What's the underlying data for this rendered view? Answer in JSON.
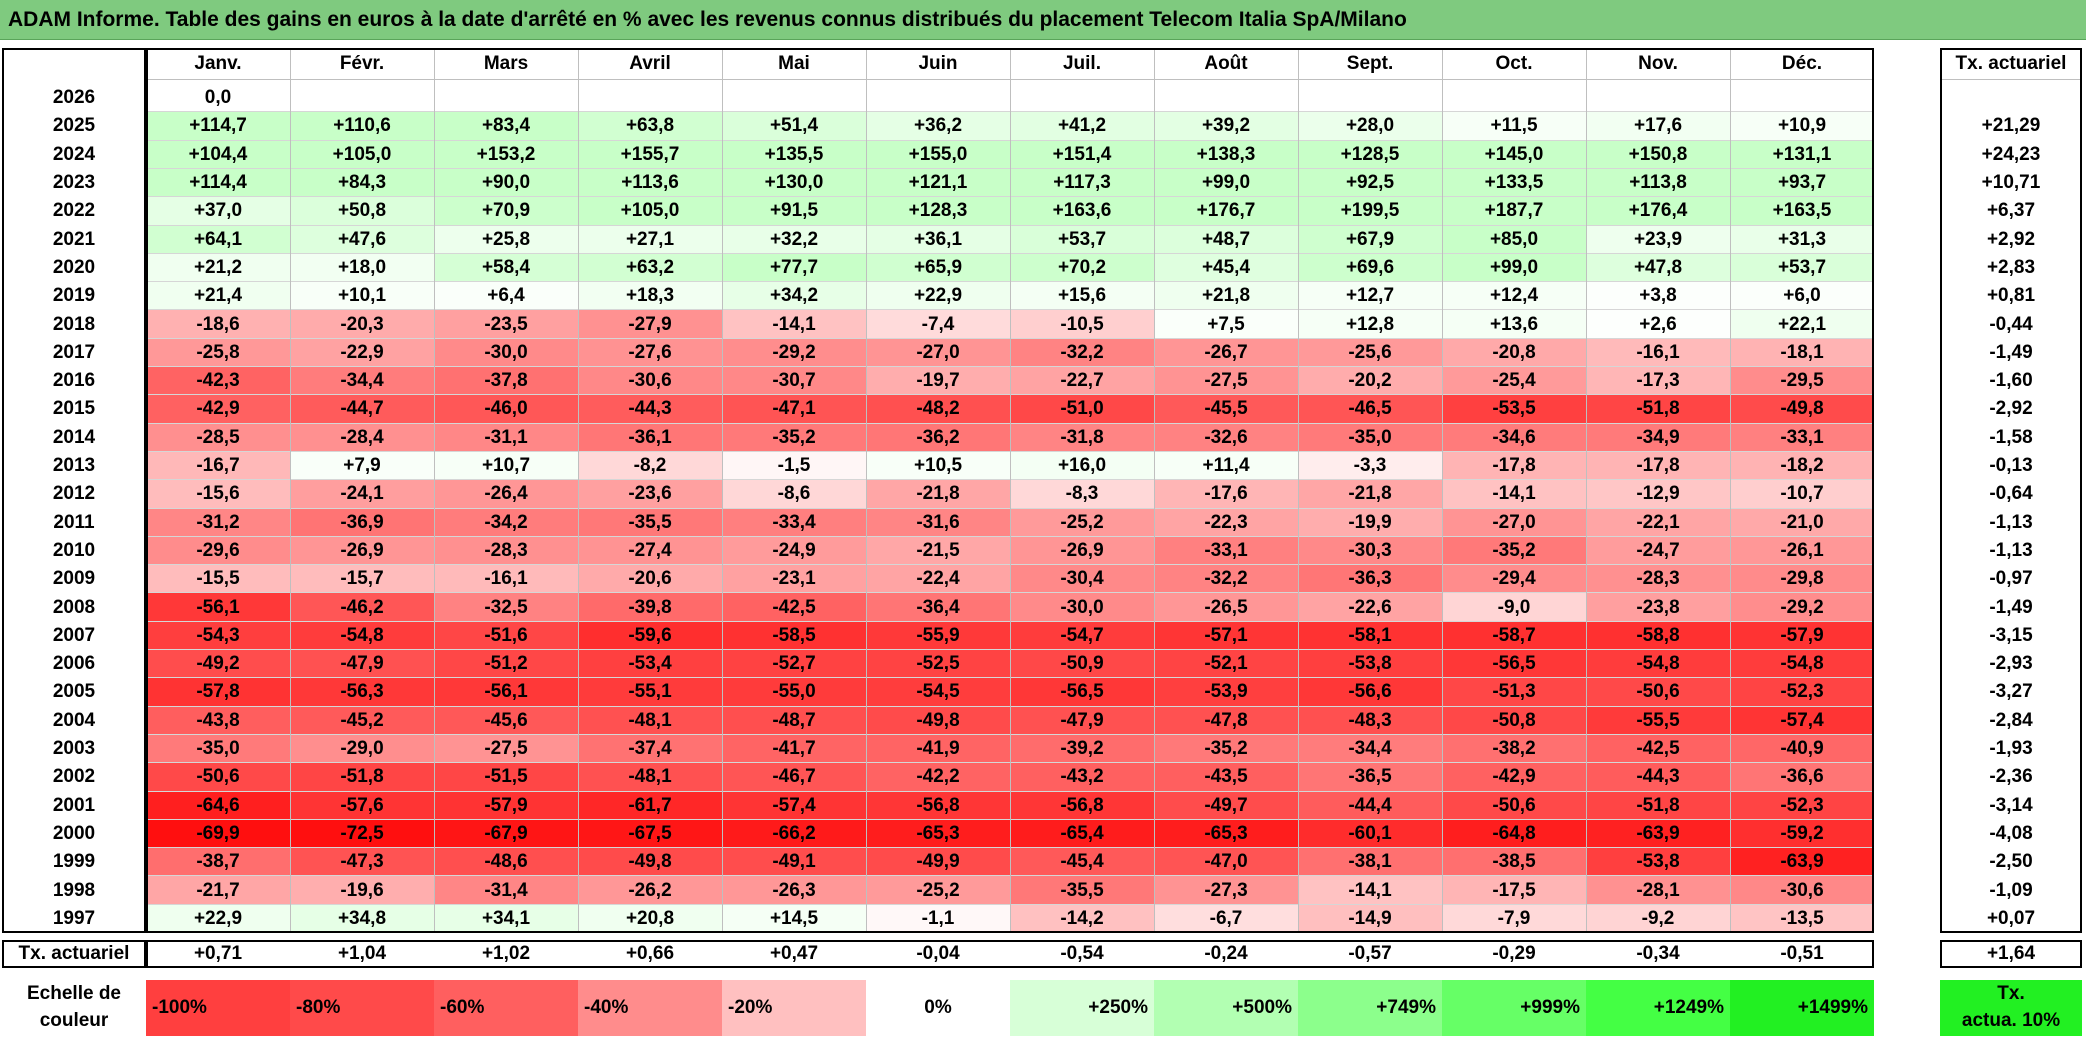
{
  "title": "ADAM Informe. Table des gains en euros à la date d'arrêté en % avec les revenus connus distribués du placement Telecom Italia SpA/Milano",
  "months": [
    "Janv.",
    "Févr.",
    "Mars",
    "Avril",
    "Mai",
    "Juin",
    "Juil.",
    "Août",
    "Sept.",
    "Oct.",
    "Nov.",
    "Déc."
  ],
  "annual_header": "Tx. actuariel",
  "rows": [
    {
      "year": "2026",
      "values": [
        "0,0",
        "",
        "",
        "",
        "",
        "",
        "",
        "",
        "",
        "",
        "",
        ""
      ],
      "rate": ""
    },
    {
      "year": "2025",
      "values": [
        "+114,7",
        "+110,6",
        "+83,4",
        "+63,8",
        "+51,4",
        "+36,2",
        "+41,2",
        "+39,2",
        "+28,0",
        "+11,5",
        "+17,6",
        "+10,9"
      ],
      "rate": "+21,29"
    },
    {
      "year": "2024",
      "values": [
        "+104,4",
        "+105,0",
        "+153,2",
        "+155,7",
        "+135,5",
        "+155,0",
        "+151,4",
        "+138,3",
        "+128,5",
        "+145,0",
        "+150,8",
        "+131,1"
      ],
      "rate": "+24,23"
    },
    {
      "year": "2023",
      "values": [
        "+114,4",
        "+84,3",
        "+90,0",
        "+113,6",
        "+130,0",
        "+121,1",
        "+117,3",
        "+99,0",
        "+92,5",
        "+133,5",
        "+113,8",
        "+93,7"
      ],
      "rate": "+10,71"
    },
    {
      "year": "2022",
      "values": [
        "+37,0",
        "+50,8",
        "+70,9",
        "+105,0",
        "+91,5",
        "+128,3",
        "+163,6",
        "+176,7",
        "+199,5",
        "+187,7",
        "+176,4",
        "+163,5"
      ],
      "rate": "+6,37"
    },
    {
      "year": "2021",
      "values": [
        "+64,1",
        "+47,6",
        "+25,8",
        "+27,1",
        "+32,2",
        "+36,1",
        "+53,7",
        "+48,7",
        "+67,9",
        "+85,0",
        "+23,9",
        "+31,3"
      ],
      "rate": "+2,92"
    },
    {
      "year": "2020",
      "values": [
        "+21,2",
        "+18,0",
        "+58,4",
        "+63,2",
        "+77,7",
        "+65,9",
        "+70,2",
        "+45,4",
        "+69,6",
        "+99,0",
        "+47,8",
        "+53,7"
      ],
      "rate": "+2,83"
    },
    {
      "year": "2019",
      "values": [
        "+21,4",
        "+10,1",
        "+6,4",
        "+18,3",
        "+34,2",
        "+22,9",
        "+15,6",
        "+21,8",
        "+12,7",
        "+12,4",
        "+3,8",
        "+6,0"
      ],
      "rate": "+0,81"
    },
    {
      "year": "2018",
      "values": [
        "-18,6",
        "-20,3",
        "-23,5",
        "-27,9",
        "-14,1",
        "-7,4",
        "-10,5",
        "+7,5",
        "+12,8",
        "+13,6",
        "+2,6",
        "+22,1"
      ],
      "rate": "-0,44"
    },
    {
      "year": "2017",
      "values": [
        "-25,8",
        "-22,9",
        "-30,0",
        "-27,6",
        "-29,2",
        "-27,0",
        "-32,2",
        "-26,7",
        "-25,6",
        "-20,8",
        "-16,1",
        "-18,1"
      ],
      "rate": "-1,49"
    },
    {
      "year": "2016",
      "values": [
        "-42,3",
        "-34,4",
        "-37,8",
        "-30,6",
        "-30,7",
        "-19,7",
        "-22,7",
        "-27,5",
        "-20,2",
        "-25,4",
        "-17,3",
        "-29,5"
      ],
      "rate": "-1,60"
    },
    {
      "year": "2015",
      "values": [
        "-42,9",
        "-44,7",
        "-46,0",
        "-44,3",
        "-47,1",
        "-48,2",
        "-51,0",
        "-45,5",
        "-46,5",
        "-53,5",
        "-51,8",
        "-49,8"
      ],
      "rate": "-2,92"
    },
    {
      "year": "2014",
      "values": [
        "-28,5",
        "-28,4",
        "-31,1",
        "-36,1",
        "-35,2",
        "-36,2",
        "-31,8",
        "-32,6",
        "-35,0",
        "-34,6",
        "-34,9",
        "-33,1"
      ],
      "rate": "-1,58"
    },
    {
      "year": "2013",
      "values": [
        "-16,7",
        "+7,9",
        "+10,7",
        "-8,2",
        "-1,5",
        "+10,5",
        "+16,0",
        "+11,4",
        "-3,3",
        "-17,8",
        "-17,8",
        "-18,2"
      ],
      "rate": "-0,13"
    },
    {
      "year": "2012",
      "values": [
        "-15,6",
        "-24,1",
        "-26,4",
        "-23,6",
        "-8,6",
        "-21,8",
        "-8,3",
        "-17,6",
        "-21,8",
        "-14,1",
        "-12,9",
        "-10,7"
      ],
      "rate": "-0,64"
    },
    {
      "year": "2011",
      "values": [
        "-31,2",
        "-36,9",
        "-34,2",
        "-35,5",
        "-33,4",
        "-31,6",
        "-25,2",
        "-22,3",
        "-19,9",
        "-27,0",
        "-22,1",
        "-21,0"
      ],
      "rate": "-1,13"
    },
    {
      "year": "2010",
      "values": [
        "-29,6",
        "-26,9",
        "-28,3",
        "-27,4",
        "-24,9",
        "-21,5",
        "-26,9",
        "-33,1",
        "-30,3",
        "-35,2",
        "-24,7",
        "-26,1"
      ],
      "rate": "-1,13"
    },
    {
      "year": "2009",
      "values": [
        "-15,5",
        "-15,7",
        "-16,1",
        "-20,6",
        "-23,1",
        "-22,4",
        "-30,4",
        "-32,2",
        "-36,3",
        "-29,4",
        "-28,3",
        "-29,8"
      ],
      "rate": "-0,97"
    },
    {
      "year": "2008",
      "values": [
        "-56,1",
        "-46,2",
        "-32,5",
        "-39,8",
        "-42,5",
        "-36,4",
        "-30,0",
        "-26,5",
        "-22,6",
        "-9,0",
        "-23,8",
        "-29,2"
      ],
      "rate": "-1,49"
    },
    {
      "year": "2007",
      "values": [
        "-54,3",
        "-54,8",
        "-51,6",
        "-59,6",
        "-58,5",
        "-55,9",
        "-54,7",
        "-57,1",
        "-58,1",
        "-58,7",
        "-58,8",
        "-57,9"
      ],
      "rate": "-3,15"
    },
    {
      "year": "2006",
      "values": [
        "-49,2",
        "-47,9",
        "-51,2",
        "-53,4",
        "-52,7",
        "-52,5",
        "-50,9",
        "-52,1",
        "-53,8",
        "-56,5",
        "-54,8",
        "-54,8"
      ],
      "rate": "-2,93"
    },
    {
      "year": "2005",
      "values": [
        "-57,8",
        "-56,3",
        "-56,1",
        "-55,1",
        "-55,0",
        "-54,5",
        "-56,5",
        "-53,9",
        "-56,6",
        "-51,3",
        "-50,6",
        "-52,3"
      ],
      "rate": "-3,27"
    },
    {
      "year": "2004",
      "values": [
        "-43,8",
        "-45,2",
        "-45,6",
        "-48,1",
        "-48,7",
        "-49,8",
        "-47,9",
        "-47,8",
        "-48,3",
        "-50,8",
        "-55,5",
        "-57,4"
      ],
      "rate": "-2,84"
    },
    {
      "year": "2003",
      "values": [
        "-35,0",
        "-29,0",
        "-27,5",
        "-37,4",
        "-41,7",
        "-41,9",
        "-39,2",
        "-35,2",
        "-34,4",
        "-38,2",
        "-42,5",
        "-40,9"
      ],
      "rate": "-1,93"
    },
    {
      "year": "2002",
      "values": [
        "-50,6",
        "-51,8",
        "-51,5",
        "-48,1",
        "-46,7",
        "-42,2",
        "-43,2",
        "-43,5",
        "-36,5",
        "-42,9",
        "-44,3",
        "-36,6"
      ],
      "rate": "-2,36"
    },
    {
      "year": "2001",
      "values": [
        "-64,6",
        "-57,6",
        "-57,9",
        "-61,7",
        "-57,4",
        "-56,8",
        "-56,8",
        "-49,7",
        "-44,4",
        "-50,6",
        "-51,8",
        "-52,3"
      ],
      "rate": "-3,14"
    },
    {
      "year": "2000",
      "values": [
        "-69,9",
        "-72,5",
        "-67,9",
        "-67,5",
        "-66,2",
        "-65,3",
        "-65,4",
        "-65,3",
        "-60,1",
        "-64,8",
        "-63,9",
        "-59,2"
      ],
      "rate": "-4,08"
    },
    {
      "year": "1999",
      "values": [
        "-38,7",
        "-47,3",
        "-48,6",
        "-49,8",
        "-49,1",
        "-49,9",
        "-45,4",
        "-47,0",
        "-38,1",
        "-38,5",
        "-53,8",
        "-63,9"
      ],
      "rate": "-2,50"
    },
    {
      "year": "1998",
      "values": [
        "-21,7",
        "-19,6",
        "-31,4",
        "-26,2",
        "-26,3",
        "-25,2",
        "-35,5",
        "-27,3",
        "-14,1",
        "-17,5",
        "-28,1",
        "-30,6"
      ],
      "rate": "-1,09"
    },
    {
      "year": "1997",
      "values": [
        "+22,9",
        "+34,8",
        "+34,1",
        "+20,8",
        "+14,5",
        "-1,1",
        "-14,2",
        "-6,7",
        "-14,9",
        "-7,9",
        "-9,2",
        "-13,5"
      ],
      "rate": "+0,07"
    }
  ],
  "summary": {
    "label": "Tx. actuariel",
    "values": [
      "+0,71",
      "+1,04",
      "+1,02",
      "+0,66",
      "+0,47",
      "-0,04",
      "-0,54",
      "-0,24",
      "-0,57",
      "-0,29",
      "-0,34",
      "-0,51"
    ],
    "rate": "+1,64"
  },
  "legend": {
    "label_line1": "Echelle de",
    "label_line2": "couleur",
    "items": [
      {
        "text": "-100%",
        "color": "#ff3f3f",
        "align": "left"
      },
      {
        "text": "-80%",
        "color": "#ff4a4a",
        "align": "left"
      },
      {
        "text": "-60%",
        "color": "#ff5f5f",
        "align": "left"
      },
      {
        "text": "-40%",
        "color": "#ff8c8c",
        "align": "left"
      },
      {
        "text": "-20%",
        "color": "#ffc0c0",
        "align": "left"
      },
      {
        "text": "0%",
        "color": "#ffffff",
        "align": "center"
      },
      {
        "text": "+250%",
        "color": "#d7ffd7",
        "align": "right"
      },
      {
        "text": "+500%",
        "color": "#b2ffb2",
        "align": "right"
      },
      {
        "text": "+749%",
        "color": "#8cff8c",
        "align": "right"
      },
      {
        "text": "+999%",
        "color": "#66ff66",
        "align": "right"
      },
      {
        "text": "+1249%",
        "color": "#44ff44",
        "align": "right"
      },
      {
        "text": "+1499%",
        "color": "#22f022",
        "align": "right"
      }
    ],
    "rate_line1": "Tx.",
    "rate_line2": "actua. 10%",
    "rate_color": "#22f022"
  }
}
